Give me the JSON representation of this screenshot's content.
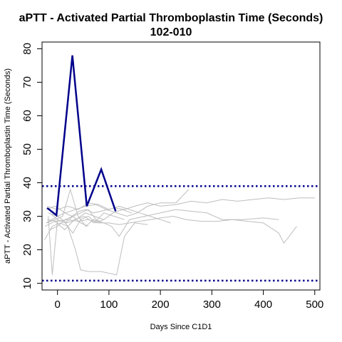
{
  "chart_data": {
    "type": "line",
    "title": "aPTT - Activated Partial Thromboplastin Time (Seconds)",
    "subtitle": "102-010",
    "xlabel": "Days Since C1D1",
    "ylabel": "aPTT - Activated Partial Thromboplastin Time (Seconds)",
    "xlim": [
      -30,
      510
    ],
    "ylim": [
      8,
      82
    ],
    "x_ticks": [
      0,
      100,
      200,
      300,
      400,
      500
    ],
    "y_ticks": [
      10,
      20,
      30,
      40,
      50,
      60,
      70,
      80
    ],
    "grid": false,
    "reference_lines": [
      {
        "value": 39,
        "color": "#00008B",
        "style": "dotted"
      },
      {
        "value": 10.8,
        "color": "#00008B",
        "style": "dotted"
      }
    ],
    "highlight_color": "#00008B",
    "background_color": "#BEBEBE",
    "series": [
      {
        "highlight": true,
        "x": [
          -20,
          -2,
          29,
          57,
          85,
          113
        ],
        "y": [
          32.5,
          30.3,
          78,
          33,
          44,
          31.5
        ]
      },
      {
        "highlight": false,
        "x": [
          -22,
          0,
          14,
          28,
          42,
          56,
          70,
          84,
          98,
          112,
          130,
          150,
          175,
          200,
          230,
          260,
          290,
          320,
          350,
          380,
          410,
          440,
          470,
          500
        ],
        "y": [
          28,
          30,
          31,
          30,
          31.5,
          32,
          31,
          31.5,
          32,
          32.5,
          32,
          33,
          34,
          33,
          33.5,
          34.5,
          34,
          35,
          34.5,
          35,
          35.5,
          35,
          35.5,
          35.5
        ]
      },
      {
        "highlight": false,
        "x": [
          -20,
          -5,
          10,
          25,
          40,
          55,
          70,
          85
        ],
        "y": [
          28,
          29,
          30,
          38,
          30,
          27,
          29,
          28
        ]
      },
      {
        "highlight": false,
        "x": [
          -18,
          -10,
          0,
          15,
          30,
          45,
          60,
          75,
          90
        ],
        "y": [
          30,
          12.5,
          29,
          28,
          25,
          29,
          30,
          28,
          29
        ]
      },
      {
        "highlight": false,
        "x": [
          -25,
          -10,
          5,
          20,
          35,
          45,
          60,
          85,
          100,
          115,
          130,
          150,
          175
        ],
        "y": [
          23,
          27,
          28,
          27,
          20,
          14,
          13.5,
          13.5,
          13,
          12.5,
          24,
          28,
          27.5
        ]
      },
      {
        "highlight": false,
        "x": [
          -20,
          0,
          20,
          40,
          60,
          80,
          100,
          120,
          140,
          160,
          180,
          200,
          225,
          250,
          280,
          310,
          340,
          370,
          400,
          430,
          440,
          450,
          465
        ],
        "y": [
          29,
          28.5,
          29,
          28.5,
          29,
          28,
          28,
          27.5,
          28,
          28.5,
          29,
          29.5,
          30,
          29,
          28.5,
          28.5,
          29,
          28.5,
          28,
          25,
          22,
          24,
          27
        ]
      },
      {
        "highlight": false,
        "x": [
          -15,
          0,
          15,
          30,
          45,
          60,
          75,
          90,
          105,
          120,
          140,
          170,
          200,
          230,
          260,
          290,
          320,
          360,
          400,
          430
        ],
        "y": [
          31,
          29,
          28,
          30,
          31,
          32,
          29,
          28,
          27,
          24,
          29,
          30,
          31,
          32,
          31.5,
          31,
          29,
          29,
          29.5,
          29
        ]
      },
      {
        "highlight": false,
        "x": [
          -22,
          -5,
          15,
          35,
          55,
          75,
          95,
          115,
          135,
          155,
          175,
          200,
          230,
          255
        ],
        "y": [
          32,
          33,
          31,
          32,
          33,
          33.5,
          32,
          31,
          30,
          31,
          33,
          34,
          34,
          38
        ]
      },
      {
        "highlight": false,
        "x": [
          -20,
          0,
          20,
          40,
          60,
          80,
          100,
          120,
          140,
          160,
          180,
          200,
          220
        ],
        "y": [
          33,
          32,
          33,
          32,
          34,
          33.5,
          32,
          33,
          32,
          31,
          30,
          29,
          28
        ]
      },
      {
        "highlight": false,
        "x": [
          -24,
          -5,
          14,
          33,
          52,
          71,
          90,
          110,
          130
        ],
        "y": [
          27,
          28.5,
          26,
          29,
          30,
          28,
          31,
          30,
          29
        ]
      },
      {
        "highlight": false,
        "x": [
          -18,
          0,
          18,
          36,
          54,
          72,
          90,
          108,
          126,
          144
        ],
        "y": [
          31,
          30,
          28,
          29,
          31,
          30,
          29,
          31,
          32,
          31
        ]
      },
      {
        "highlight": false,
        "x": [
          -15,
          0,
          15,
          30,
          45,
          60
        ],
        "y": [
          26,
          27,
          29,
          30,
          28,
          27
        ]
      }
    ]
  }
}
